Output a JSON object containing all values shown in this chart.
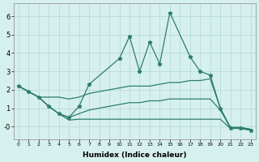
{
  "xlabel": "Humidex (Indice chaleur)",
  "line_color": "#2e7d6e",
  "bg_color": "#d6f0ee",
  "grid_color": "#b0d8d4",
  "xlim": [
    -0.5,
    23.5
  ],
  "ylim": [
    -0.7,
    6.7
  ],
  "xticks": [
    0,
    1,
    2,
    3,
    4,
    5,
    6,
    7,
    8,
    9,
    10,
    11,
    12,
    13,
    14,
    15,
    16,
    17,
    18,
    19,
    20,
    21,
    22,
    23
  ],
  "yticks": [
    0,
    1,
    2,
    3,
    4,
    5,
    6
  ],
  "ytick_labels": [
    "-0",
    "1",
    "2",
    "3",
    "4",
    "5",
    "6"
  ],
  "s1_x": [
    0,
    1,
    2,
    3,
    4,
    5,
    6,
    7,
    10,
    11,
    12,
    13,
    14,
    15,
    17,
    18,
    19,
    20,
    21,
    22,
    23
  ],
  "s1_y": [
    2.2,
    1.9,
    1.6,
    1.1,
    0.7,
    0.5,
    1.1,
    2.3,
    3.7,
    4.9,
    3.0,
    4.6,
    3.4,
    6.2,
    3.8,
    3.0,
    2.8,
    1.0,
    -0.1,
    -0.1,
    -0.2
  ],
  "s2_x": [
    0,
    1,
    2,
    3,
    4,
    5,
    6,
    7,
    8,
    9,
    10,
    11,
    12,
    13,
    14,
    15,
    16,
    17,
    18,
    19,
    20,
    21,
    22,
    23
  ],
  "s2_y": [
    2.2,
    1.9,
    1.6,
    1.6,
    1.6,
    1.5,
    1.6,
    1.8,
    1.9,
    2.0,
    2.1,
    2.2,
    2.2,
    2.2,
    2.3,
    2.4,
    2.4,
    2.5,
    2.5,
    2.6,
    1.0,
    -0.05,
    -0.05,
    -0.15
  ],
  "s3_x": [
    0,
    1,
    2,
    3,
    4,
    5,
    6,
    7,
    8,
    9,
    10,
    11,
    12,
    13,
    14,
    15,
    16,
    17,
    18,
    19,
    20,
    21,
    22,
    23
  ],
  "s3_y": [
    2.2,
    1.9,
    1.6,
    1.1,
    0.7,
    0.5,
    0.7,
    0.9,
    1.0,
    1.1,
    1.2,
    1.3,
    1.3,
    1.4,
    1.4,
    1.5,
    1.5,
    1.5,
    1.5,
    1.5,
    0.9,
    -0.05,
    -0.05,
    -0.15
  ],
  "s4_x": [
    0,
    1,
    2,
    3,
    4,
    5,
    6,
    7,
    8,
    9,
    10,
    11,
    12,
    13,
    14,
    15,
    16,
    17,
    18,
    19,
    20,
    21,
    22,
    23
  ],
  "s4_y": [
    2.2,
    1.9,
    1.6,
    1.1,
    0.7,
    0.35,
    0.4,
    0.4,
    0.4,
    0.4,
    0.4,
    0.4,
    0.4,
    0.4,
    0.4,
    0.4,
    0.4,
    0.4,
    0.4,
    0.4,
    0.4,
    -0.1,
    -0.1,
    -0.2
  ]
}
